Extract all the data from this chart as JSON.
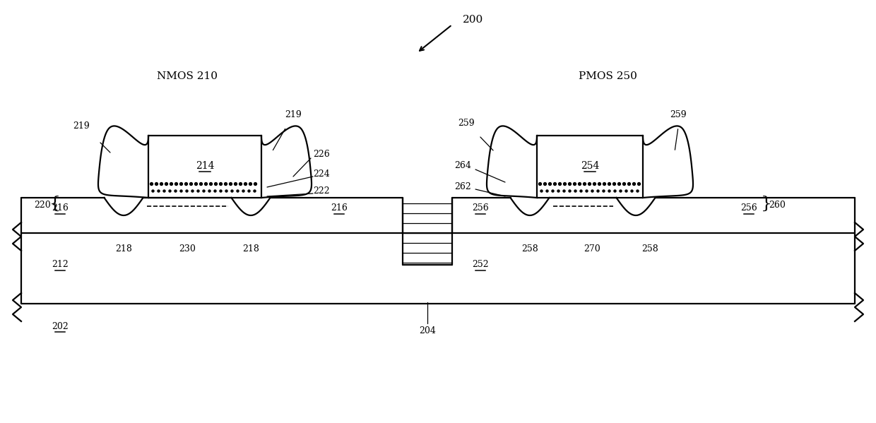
{
  "bg_color": "#ffffff",
  "line_color": "#000000",
  "fig_width": 12.4,
  "fig_height": 5.99
}
